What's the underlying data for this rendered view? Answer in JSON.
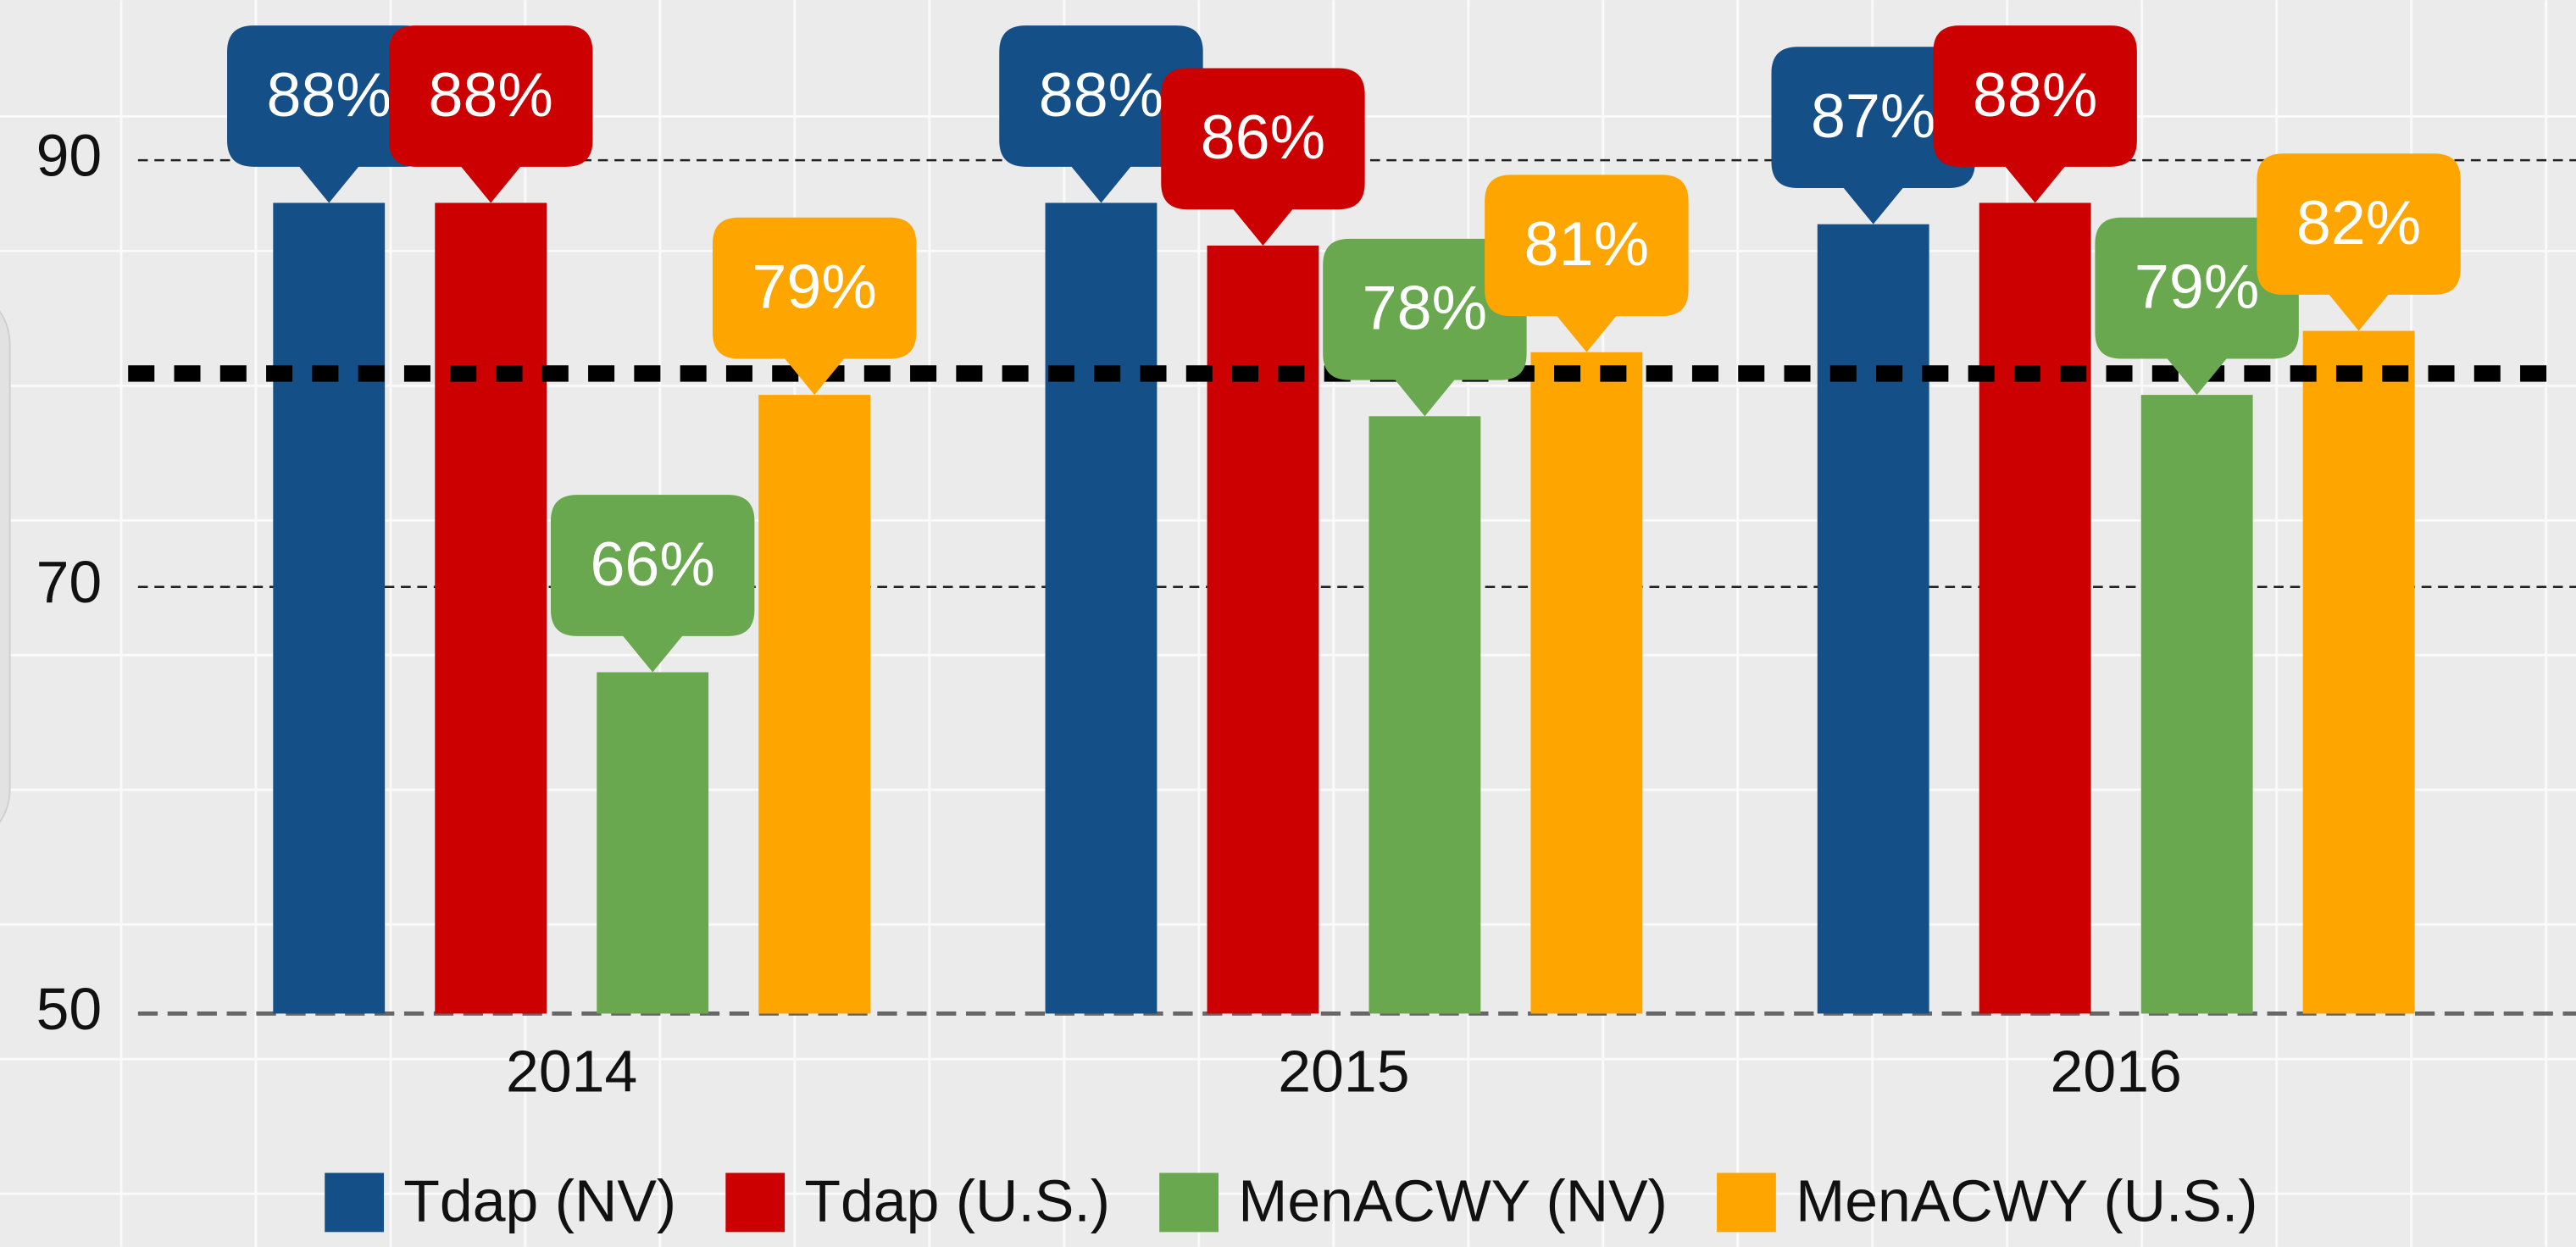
{
  "chart_data": {
    "type": "bar",
    "categories": [
      "2014",
      "2015",
      "2016"
    ],
    "series": [
      {
        "name": "Tdap (NV)",
        "color": "#154f87",
        "values": [
          88,
          88,
          87
        ],
        "value_labels": [
          "88%",
          "88%",
          "87%"
        ]
      },
      {
        "name": "Tdap (U.S.)",
        "color": "#cc0000",
        "values": [
          88,
          86,
          88
        ],
        "value_labels": [
          "88%",
          "86%",
          "88%"
        ]
      },
      {
        "name": "MenACWY (NV)",
        "color": "#6aa84f",
        "values": [
          66,
          78,
          79
        ],
        "value_labels": [
          "66%",
          "78%",
          "79%"
        ]
      },
      {
        "name": "MenACWY (U.S.)",
        "color": "#ffa500",
        "values": [
          79,
          81,
          82
        ],
        "value_labels": [
          "79%",
          "81%",
          "82%"
        ]
      }
    ],
    "ylim": [
      50,
      97.5
    ],
    "yticks": [
      50,
      70,
      90
    ],
    "grid": true,
    "reference_line": 80,
    "legend": "bottom"
  }
}
